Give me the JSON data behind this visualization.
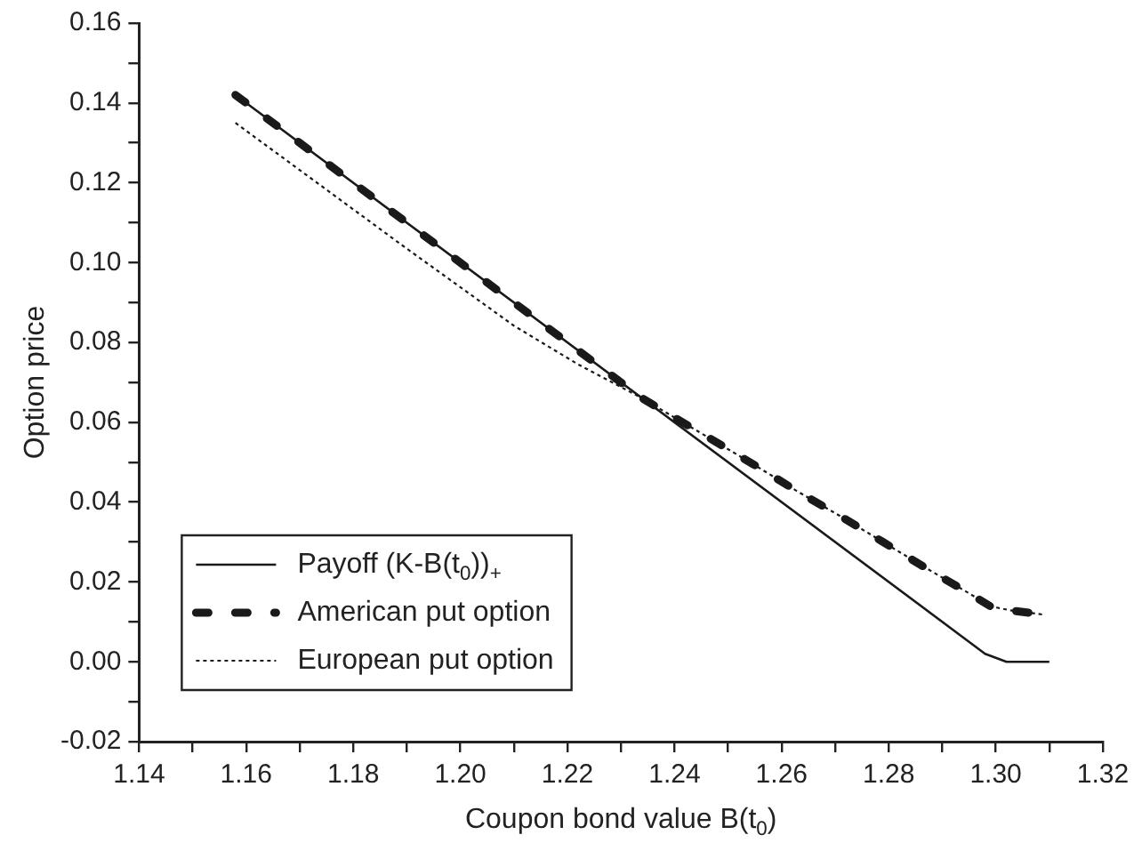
{
  "chart_data": {
    "type": "line",
    "xlabel": "Coupon bond value B(t$_{0}$)",
    "ylabel": "Option price",
    "xlim": [
      1.14,
      1.32
    ],
    "ylim": [
      -0.02,
      0.16
    ],
    "xticks": [
      {
        "value": 1.14,
        "label": "1.14"
      },
      {
        "value": 1.15,
        "label": null
      },
      {
        "value": 1.16,
        "label": "1.16"
      },
      {
        "value": 1.17,
        "label": null
      },
      {
        "value": 1.18,
        "label": "1.18"
      },
      {
        "value": 1.19,
        "label": null
      },
      {
        "value": 1.2,
        "label": "1.20"
      },
      {
        "value": 1.21,
        "label": null
      },
      {
        "value": 1.22,
        "label": "1.22"
      },
      {
        "value": 1.23,
        "label": null
      },
      {
        "value": 1.24,
        "label": "1.24"
      },
      {
        "value": 1.25,
        "label": null
      },
      {
        "value": 1.26,
        "label": "1.26"
      },
      {
        "value": 1.27,
        "label": null
      },
      {
        "value": 1.28,
        "label": "1.28"
      },
      {
        "value": 1.29,
        "label": null
      },
      {
        "value": 1.3,
        "label": "1.30"
      },
      {
        "value": 1.31,
        "label": null
      },
      {
        "value": 1.32,
        "label": "1.32"
      }
    ],
    "yticks": [
      {
        "value": -0.02,
        "label": "-0.02"
      },
      {
        "value": -0.01,
        "label": null
      },
      {
        "value": 0,
        "label": "0.00"
      },
      {
        "value": 0.01,
        "label": null
      },
      {
        "value": 0.02,
        "label": "0.02"
      },
      {
        "value": 0.03,
        "label": null
      },
      {
        "value": 0.04,
        "label": "0.04"
      },
      {
        "value": 0.05,
        "label": null
      },
      {
        "value": 0.06,
        "label": "0.06"
      },
      {
        "value": 0.07,
        "label": null
      },
      {
        "value": 0.08,
        "label": "0.08"
      },
      {
        "value": 0.09,
        "label": null
      },
      {
        "value": 0.1,
        "label": "0.10"
      },
      {
        "value": 0.11,
        "label": null
      },
      {
        "value": 0.12,
        "label": "0.12"
      },
      {
        "value": 0.13,
        "label": null
      },
      {
        "value": 0.14,
        "label": "0.14"
      },
      {
        "value": 0.15,
        "label": null
      },
      {
        "value": 0.16,
        "label": "0.16"
      }
    ],
    "grid": false,
    "legend": "bottom left",
    "marker": "none",
    "series": [
      {
        "name": "Payoff (K-B(t$_{0}$))$_{+}$",
        "color": "#1a1a1a",
        "line_style": "solid",
        "x": [
          1.158,
          1.298,
          1.302,
          1.31
        ],
        "values": [
          0.142,
          0.002,
          0,
          0
        ]
      },
      {
        "name": "American put option",
        "color": "#1a1a1a",
        "line_style": "dashed",
        "x": [
          1.158,
          1.2,
          1.234,
          1.2386,
          1.2467,
          1.2547,
          1.2627,
          1.2707,
          1.2787,
          1.2867,
          1.2947,
          1.299,
          1.3027,
          1.309
        ],
        "values": [
          0.142,
          0.1,
          0.066,
          0.0623,
          0.0559,
          0.0495,
          0.0429,
          0.0367,
          0.0302,
          0.0237,
          0.0174,
          0.0139,
          0.0129,
          0.0118
        ]
      },
      {
        "name": "European put option",
        "color": "#1a1a1a",
        "line_style": "dotted",
        "x": [
          1.158,
          1.19,
          1.21,
          1.222,
          1.234,
          1.2386,
          1.2467,
          1.2547,
          1.2627,
          1.2707,
          1.2787,
          1.2867,
          1.2947,
          1.299,
          1.3027,
          1.309
        ],
        "values": [
          0.135,
          0.1035,
          0.0842,
          0.0745,
          0.066,
          0.0623,
          0.0559,
          0.0495,
          0.0429,
          0.0367,
          0.0302,
          0.0237,
          0.0174,
          0.0139,
          0.0129,
          0.0118
        ]
      }
    ]
  }
}
